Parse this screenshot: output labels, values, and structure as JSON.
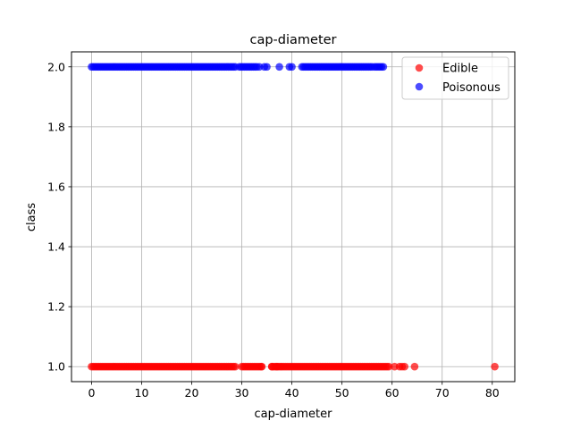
{
  "chart_data": {
    "type": "scatter",
    "title": "cap-diameter",
    "xlabel": "cap-diameter",
    "ylabel": "class",
    "xlim": [
      -4,
      84.5
    ],
    "ylim": [
      0.95,
      2.05
    ],
    "xticks": [
      0,
      10,
      20,
      30,
      40,
      50,
      60,
      70,
      80
    ],
    "yticks": [
      1.0,
      1.2,
      1.4,
      1.6,
      1.8,
      2.0
    ],
    "xtick_labels": [
      "0",
      "10",
      "20",
      "30",
      "40",
      "50",
      "60",
      "70",
      "80"
    ],
    "ytick_labels": [
      "1.0",
      "1.2",
      "1.4",
      "1.6",
      "1.8",
      "2.0"
    ],
    "grid": true,
    "legend_position": "top-right",
    "series": [
      {
        "name": "Edible",
        "color": "#ff0000",
        "alpha": 0.7,
        "y": 1.0,
        "x_ranges": [
          [
            0.0,
            29.0
          ],
          [
            30.0,
            34.0
          ],
          [
            36.0,
            38.0
          ],
          [
            38.0,
            59.5
          ]
        ],
        "x_points": [
          34.0,
          36.0,
          37.0,
          60.5,
          61.5,
          62.0,
          62.5,
          64.5,
          80.5
        ]
      },
      {
        "name": "Poisonous",
        "color": "#0000ff",
        "alpha": 0.7,
        "y": 2.0,
        "x_ranges": [
          [
            0.0,
            29.0
          ],
          [
            29.5,
            33.0
          ],
          [
            42.0,
            56.0
          ],
          [
            56.5,
            58.5
          ]
        ],
        "x_points": [
          33.5,
          34.5,
          35.0,
          37.5,
          39.5,
          40.0
        ]
      }
    ]
  }
}
